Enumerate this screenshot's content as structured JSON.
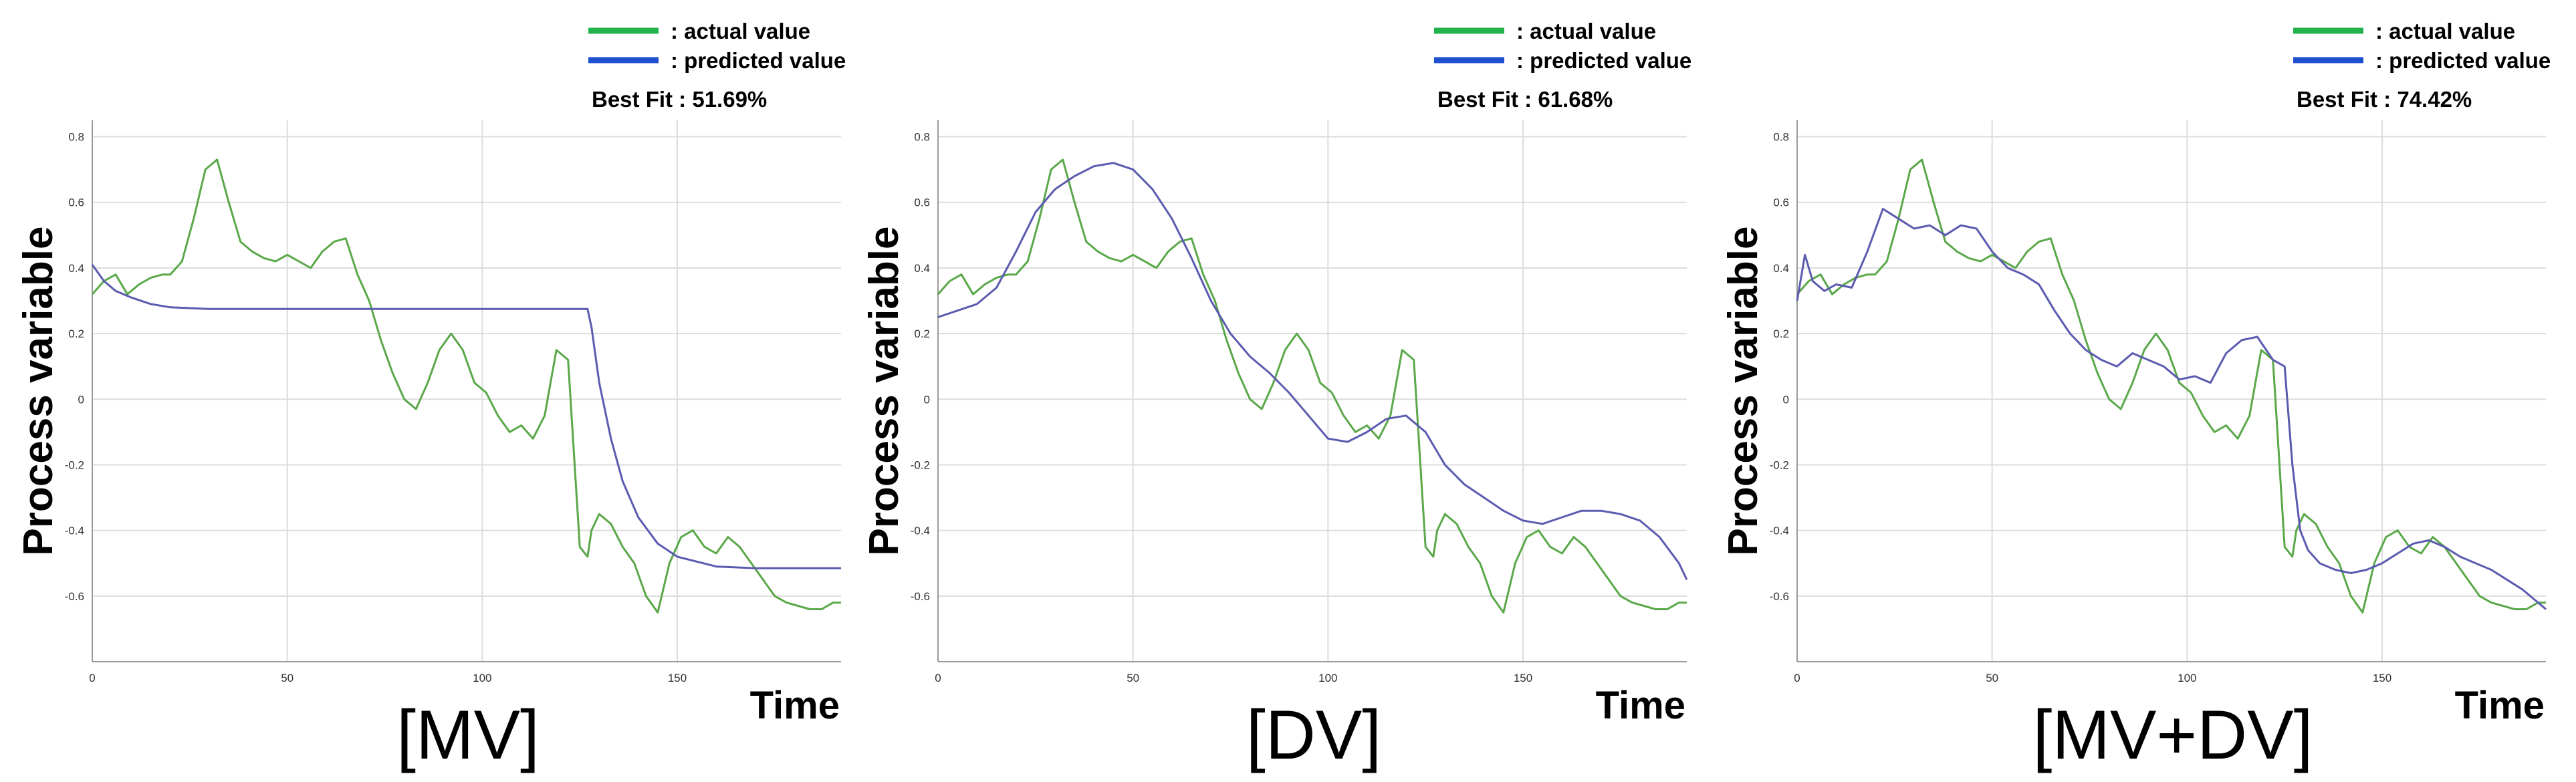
{
  "legend": {
    "actual_label": ": actual value",
    "predicted_label": ": predicted value"
  },
  "colors": {
    "actual": "#22b24c",
    "predicted": "#1f4fd1",
    "actual_line": "#5aa84a",
    "predicted_line": "#5b5bb0"
  },
  "chart_data": [
    {
      "type": "line",
      "panel_label": "[MV]",
      "best_fit": "Best Fit : 51.69%",
      "xlabel": "Time",
      "ylabel": "Process variable",
      "xlim": [
        0,
        192
      ],
      "ylim": [
        -0.8,
        0.85
      ],
      "x_ticks": [
        0,
        50,
        100,
        150
      ],
      "y_ticks": [
        0.8,
        0.6,
        0.4,
        0.2,
        0,
        -0.2,
        -0.4,
        -0.6
      ],
      "x_tick_labels": [
        "0",
        "50",
        "100",
        "150"
      ],
      "y_tick_labels": [
        "0.8",
        "0.6",
        "0.4",
        "0.2",
        "0",
        "-0.2",
        "-0.4",
        "-0.6"
      ],
      "grid": true,
      "series": [
        {
          "name": "actual value",
          "x": [
            0,
            3,
            6,
            9,
            12,
            15,
            18,
            20,
            23,
            26,
            29,
            32,
            35,
            38,
            41,
            44,
            47,
            50,
            53,
            56,
            59,
            62,
            65,
            68,
            71,
            74,
            77,
            80,
            83,
            86,
            89,
            92,
            95,
            98,
            101,
            104,
            107,
            110,
            113,
            116,
            119,
            122,
            125,
            127,
            128,
            130,
            133,
            136,
            139,
            142,
            145,
            148,
            151,
            154,
            157,
            160,
            163,
            166,
            169,
            172,
            175,
            178,
            181,
            184,
            187,
            190,
            192
          ],
          "y": [
            0.32,
            0.36,
            0.38,
            0.32,
            0.35,
            0.37,
            0.38,
            0.38,
            0.42,
            0.55,
            0.7,
            0.73,
            0.6,
            0.48,
            0.45,
            0.43,
            0.42,
            0.44,
            0.42,
            0.4,
            0.45,
            0.48,
            0.49,
            0.38,
            0.3,
            0.18,
            0.08,
            0.0,
            -0.03,
            0.05,
            0.15,
            0.2,
            0.15,
            0.05,
            0.02,
            -0.05,
            -0.1,
            -0.08,
            -0.12,
            -0.05,
            0.15,
            0.12,
            -0.45,
            -0.48,
            -0.4,
            -0.35,
            -0.38,
            -0.45,
            -0.5,
            -0.6,
            -0.65,
            -0.5,
            -0.42,
            -0.4,
            -0.45,
            -0.47,
            -0.42,
            -0.45,
            -0.5,
            -0.55,
            -0.6,
            -0.62,
            -0.63,
            -0.64,
            -0.64,
            -0.62,
            -0.62
          ]
        },
        {
          "name": "predicted value",
          "x": [
            0,
            3,
            6,
            10,
            15,
            20,
            30,
            40,
            60,
            80,
            100,
            110,
            120,
            127,
            128,
            130,
            133,
            136,
            140,
            145,
            150,
            160,
            170,
            180,
            192
          ],
          "y": [
            0.41,
            0.36,
            0.33,
            0.31,
            0.29,
            0.28,
            0.275,
            0.275,
            0.275,
            0.275,
            0.275,
            0.275,
            0.275,
            0.275,
            0.22,
            0.05,
            -0.12,
            -0.25,
            -0.36,
            -0.44,
            -0.48,
            -0.51,
            -0.515,
            -0.515,
            -0.515
          ]
        }
      ]
    },
    {
      "type": "line",
      "panel_label": "[DV]",
      "best_fit": "Best Fit : 61.68%",
      "xlabel": "Time",
      "ylabel": "Process variable",
      "xlim": [
        0,
        192
      ],
      "ylim": [
        -0.8,
        0.85
      ],
      "x_ticks": [
        0,
        50,
        100,
        150
      ],
      "y_ticks": [
        0.8,
        0.6,
        0.4,
        0.2,
        0,
        -0.2,
        -0.4,
        -0.6
      ],
      "x_tick_labels": [
        "0",
        "50",
        "100",
        "150"
      ],
      "y_tick_labels": [
        "0.8",
        "0.6",
        "0.4",
        "0.2",
        "0",
        "-0.2",
        "-0.4",
        "-0.6"
      ],
      "grid": true,
      "series": [
        {
          "name": "actual value",
          "x": [
            0,
            3,
            6,
            9,
            12,
            15,
            18,
            20,
            23,
            26,
            29,
            32,
            35,
            38,
            41,
            44,
            47,
            50,
            53,
            56,
            59,
            62,
            65,
            68,
            71,
            74,
            77,
            80,
            83,
            86,
            89,
            92,
            95,
            98,
            101,
            104,
            107,
            110,
            113,
            116,
            119,
            122,
            125,
            127,
            128,
            130,
            133,
            136,
            139,
            142,
            145,
            148,
            151,
            154,
            157,
            160,
            163,
            166,
            169,
            172,
            175,
            178,
            181,
            184,
            187,
            190,
            192
          ],
          "y": [
            0.32,
            0.36,
            0.38,
            0.32,
            0.35,
            0.37,
            0.38,
            0.38,
            0.42,
            0.55,
            0.7,
            0.73,
            0.6,
            0.48,
            0.45,
            0.43,
            0.42,
            0.44,
            0.42,
            0.4,
            0.45,
            0.48,
            0.49,
            0.38,
            0.3,
            0.18,
            0.08,
            0.0,
            -0.03,
            0.05,
            0.15,
            0.2,
            0.15,
            0.05,
            0.02,
            -0.05,
            -0.1,
            -0.08,
            -0.12,
            -0.05,
            0.15,
            0.12,
            -0.45,
            -0.48,
            -0.4,
            -0.35,
            -0.38,
            -0.45,
            -0.5,
            -0.6,
            -0.65,
            -0.5,
            -0.42,
            -0.4,
            -0.45,
            -0.47,
            -0.42,
            -0.45,
            -0.5,
            -0.55,
            -0.6,
            -0.62,
            -0.63,
            -0.64,
            -0.64,
            -0.62,
            -0.62
          ]
        },
        {
          "name": "predicted value",
          "x": [
            0,
            5,
            10,
            15,
            20,
            25,
            30,
            35,
            40,
            45,
            50,
            55,
            60,
            65,
            70,
            75,
            80,
            85,
            90,
            95,
            100,
            105,
            110,
            115,
            120,
            125,
            130,
            135,
            140,
            145,
            150,
            155,
            160,
            165,
            170,
            175,
            180,
            185,
            190,
            192
          ],
          "y": [
            0.25,
            0.27,
            0.29,
            0.34,
            0.45,
            0.57,
            0.64,
            0.68,
            0.71,
            0.72,
            0.7,
            0.64,
            0.55,
            0.43,
            0.3,
            0.2,
            0.13,
            0.08,
            0.02,
            -0.05,
            -0.12,
            -0.13,
            -0.1,
            -0.06,
            -0.05,
            -0.1,
            -0.2,
            -0.26,
            -0.3,
            -0.34,
            -0.37,
            -0.38,
            -0.36,
            -0.34,
            -0.34,
            -0.35,
            -0.37,
            -0.42,
            -0.5,
            -0.55
          ]
        }
      ]
    },
    {
      "type": "line",
      "panel_label": "[MV+DV]",
      "best_fit": "Best Fit : 74.42%",
      "xlabel": "Time",
      "ylabel": "Process variable",
      "xlim": [
        0,
        192
      ],
      "ylim": [
        -0.8,
        0.85
      ],
      "x_ticks": [
        0,
        50,
        100,
        150
      ],
      "y_ticks": [
        0.8,
        0.6,
        0.4,
        0.2,
        0,
        -0.2,
        -0.4,
        -0.6
      ],
      "x_tick_labels": [
        "0",
        "50",
        "100",
        "150"
      ],
      "y_tick_labels": [
        "0.8",
        "0.6",
        "0.4",
        "0.2",
        "0",
        "-0.2",
        "-0.4",
        "-0.6"
      ],
      "grid": true,
      "series": [
        {
          "name": "actual value",
          "x": [
            0,
            3,
            6,
            9,
            12,
            15,
            18,
            20,
            23,
            26,
            29,
            32,
            35,
            38,
            41,
            44,
            47,
            50,
            53,
            56,
            59,
            62,
            65,
            68,
            71,
            74,
            77,
            80,
            83,
            86,
            89,
            92,
            95,
            98,
            101,
            104,
            107,
            110,
            113,
            116,
            119,
            122,
            125,
            127,
            128,
            130,
            133,
            136,
            139,
            142,
            145,
            148,
            151,
            154,
            157,
            160,
            163,
            166,
            169,
            172,
            175,
            178,
            181,
            184,
            187,
            190,
            192
          ],
          "y": [
            0.32,
            0.36,
            0.38,
            0.32,
            0.35,
            0.37,
            0.38,
            0.38,
            0.42,
            0.55,
            0.7,
            0.73,
            0.6,
            0.48,
            0.45,
            0.43,
            0.42,
            0.44,
            0.42,
            0.4,
            0.45,
            0.48,
            0.49,
            0.38,
            0.3,
            0.18,
            0.08,
            0.0,
            -0.03,
            0.05,
            0.15,
            0.2,
            0.15,
            0.05,
            0.02,
            -0.05,
            -0.1,
            -0.08,
            -0.12,
            -0.05,
            0.15,
            0.12,
            -0.45,
            -0.48,
            -0.4,
            -0.35,
            -0.38,
            -0.45,
            -0.5,
            -0.6,
            -0.65,
            -0.5,
            -0.42,
            -0.4,
            -0.45,
            -0.47,
            -0.42,
            -0.45,
            -0.5,
            -0.55,
            -0.6,
            -0.62,
            -0.63,
            -0.64,
            -0.64,
            -0.62,
            -0.62
          ]
        },
        {
          "name": "predicted value",
          "x": [
            0,
            2,
            4,
            7,
            10,
            14,
            18,
            22,
            26,
            30,
            34,
            38,
            42,
            46,
            50,
            54,
            58,
            62,
            66,
            70,
            74,
            78,
            82,
            86,
            90,
            94,
            98,
            102,
            106,
            110,
            114,
            118,
            122,
            125,
            127,
            129,
            131,
            134,
            138,
            142,
            146,
            150,
            154,
            158,
            162,
            166,
            170,
            174,
            178,
            182,
            186,
            190,
            192
          ],
          "y": [
            0.3,
            0.44,
            0.36,
            0.33,
            0.35,
            0.34,
            0.45,
            0.58,
            0.55,
            0.52,
            0.53,
            0.5,
            0.53,
            0.52,
            0.45,
            0.4,
            0.38,
            0.35,
            0.27,
            0.2,
            0.15,
            0.12,
            0.1,
            0.14,
            0.12,
            0.1,
            0.06,
            0.07,
            0.05,
            0.14,
            0.18,
            0.19,
            0.12,
            0.1,
            -0.2,
            -0.4,
            -0.46,
            -0.5,
            -0.52,
            -0.53,
            -0.52,
            -0.5,
            -0.47,
            -0.44,
            -0.43,
            -0.45,
            -0.48,
            -0.5,
            -0.52,
            -0.55,
            -0.58,
            -0.62,
            -0.64
          ]
        }
      ]
    }
  ]
}
